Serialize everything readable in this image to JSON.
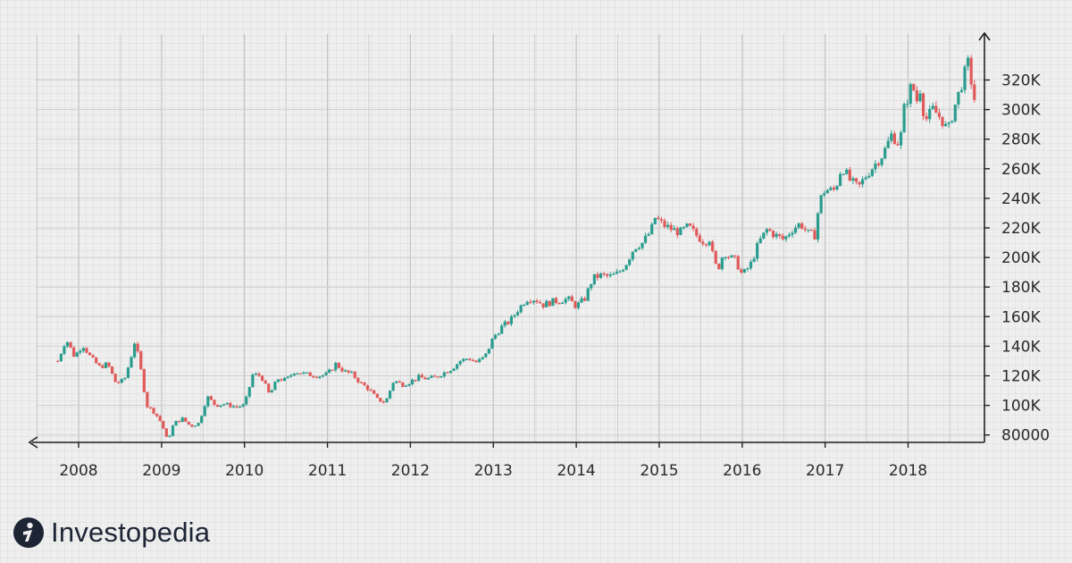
{
  "brand": {
    "name": "Investopedia"
  },
  "colors": {
    "up": "#2a9d8f",
    "down": "#e05a5a",
    "axis": "#222222",
    "grid": "#cfcfcf",
    "grid_major": "#c2c2c2"
  },
  "chart_data": {
    "type": "candlestick",
    "title": "",
    "xlabel": "",
    "ylabel": "",
    "x_tick_labels": [
      "2008",
      "2009",
      "2010",
      "2011",
      "2012",
      "2013",
      "2014",
      "2015",
      "2016",
      "2017",
      "2018"
    ],
    "y_tick_labels": [
      "80000",
      "100K",
      "120K",
      "140K",
      "160K",
      "180K",
      "200K",
      "220K",
      "240K",
      "260K",
      "280K",
      "300K",
      "320K"
    ],
    "y_tick_values": [
      80000,
      100000,
      120000,
      140000,
      160000,
      180000,
      200000,
      220000,
      240000,
      260000,
      280000,
      300000,
      320000
    ],
    "ylim": [
      67000,
      342000
    ],
    "xlim": [
      2007.5,
      2018.9
    ],
    "axis_side": "right",
    "grid": true,
    "series": [
      {
        "values": [
          [
            2007.75,
            130000
          ],
          [
            2007.85,
            145000
          ],
          [
            2007.95,
            133000
          ],
          [
            2008.05,
            141000
          ],
          [
            2008.15,
            132000
          ],
          [
            2008.25,
            126000
          ],
          [
            2008.35,
            128000
          ],
          [
            2008.45,
            115000
          ],
          [
            2008.55,
            117000
          ],
          [
            2008.62,
            130000
          ],
          [
            2008.68,
            144000
          ],
          [
            2008.75,
            124000
          ],
          [
            2008.82,
            100000
          ],
          [
            2008.92,
            95000
          ],
          [
            2009.0,
            88000
          ],
          [
            2009.07,
            76000
          ],
          [
            2009.15,
            88000
          ],
          [
            2009.25,
            91000
          ],
          [
            2009.35,
            86000
          ],
          [
            2009.45,
            88000
          ],
          [
            2009.55,
            106000
          ],
          [
            2009.65,
            100000
          ],
          [
            2009.75,
            101000
          ],
          [
            2009.9,
            99000
          ],
          [
            2010.0,
            100000
          ],
          [
            2010.1,
            121000
          ],
          [
            2010.2,
            120000
          ],
          [
            2010.3,
            107000
          ],
          [
            2010.4,
            118000
          ],
          [
            2010.5,
            117000
          ],
          [
            2010.6,
            123000
          ],
          [
            2010.75,
            121000
          ],
          [
            2010.9,
            120000
          ],
          [
            2011.0,
            121000
          ],
          [
            2011.1,
            128000
          ],
          [
            2011.2,
            123000
          ],
          [
            2011.3,
            121000
          ],
          [
            2011.4,
            115000
          ],
          [
            2011.5,
            111000
          ],
          [
            2011.6,
            104000
          ],
          [
            2011.7,
            102000
          ],
          [
            2011.8,
            117000
          ],
          [
            2011.9,
            114000
          ],
          [
            2012.0,
            116000
          ],
          [
            2012.1,
            119000
          ],
          [
            2012.2,
            118000
          ],
          [
            2012.3,
            119000
          ],
          [
            2012.4,
            122000
          ],
          [
            2012.5,
            125000
          ],
          [
            2012.6,
            130000
          ],
          [
            2012.7,
            132000
          ],
          [
            2012.8,
            129000
          ],
          [
            2012.9,
            133000
          ],
          [
            2013.0,
            146000
          ],
          [
            2013.1,
            153000
          ],
          [
            2013.2,
            157000
          ],
          [
            2013.3,
            165000
          ],
          [
            2013.4,
            172000
          ],
          [
            2013.5,
            172000
          ],
          [
            2013.6,
            168000
          ],
          [
            2013.7,
            170000
          ],
          [
            2013.8,
            171000
          ],
          [
            2013.9,
            172000
          ],
          [
            2014.0,
            167000
          ],
          [
            2014.1,
            172000
          ],
          [
            2014.2,
            186000
          ],
          [
            2014.3,
            188000
          ],
          [
            2014.4,
            187000
          ],
          [
            2014.5,
            189000
          ],
          [
            2014.6,
            196000
          ],
          [
            2014.7,
            207000
          ],
          [
            2014.8,
            210000
          ],
          [
            2014.9,
            218000
          ],
          [
            2014.95,
            227000
          ],
          [
            2015.05,
            222000
          ],
          [
            2015.15,
            219000
          ],
          [
            2015.25,
            217000
          ],
          [
            2015.35,
            221000
          ],
          [
            2015.45,
            215000
          ],
          [
            2015.55,
            210000
          ],
          [
            2015.6,
            214000
          ],
          [
            2015.65,
            200000
          ],
          [
            2015.7,
            191000
          ],
          [
            2015.78,
            204000
          ],
          [
            2015.85,
            200000
          ],
          [
            2015.92,
            198000
          ],
          [
            2016.0,
            188000
          ],
          [
            2016.1,
            195000
          ],
          [
            2016.2,
            210000
          ],
          [
            2016.3,
            219000
          ],
          [
            2016.4,
            215000
          ],
          [
            2016.5,
            212000
          ],
          [
            2016.6,
            219000
          ],
          [
            2016.7,
            223000
          ],
          [
            2016.8,
            216000
          ],
          [
            2016.88,
            215000
          ],
          [
            2016.93,
            238000
          ],
          [
            2017.0,
            246000
          ],
          [
            2017.1,
            245000
          ],
          [
            2017.15,
            251000
          ],
          [
            2017.2,
            262000
          ],
          [
            2017.3,
            252000
          ],
          [
            2017.4,
            247000
          ],
          [
            2017.5,
            256000
          ],
          [
            2017.6,
            263000
          ],
          [
            2017.7,
            270000
          ],
          [
            2017.8,
            283000
          ],
          [
            2017.9,
            276000
          ],
          [
            2017.95,
            300000
          ],
          [
            2018.05,
            318000
          ],
          [
            2018.1,
            305000
          ],
          [
            2018.15,
            315000
          ],
          [
            2018.2,
            292000
          ],
          [
            2018.3,
            300000
          ],
          [
            2018.4,
            294000
          ],
          [
            2018.48,
            285000
          ],
          [
            2018.55,
            300000
          ],
          [
            2018.65,
            318000
          ],
          [
            2018.72,
            332000
          ],
          [
            2018.8,
            307000
          ]
        ]
      }
    ]
  }
}
